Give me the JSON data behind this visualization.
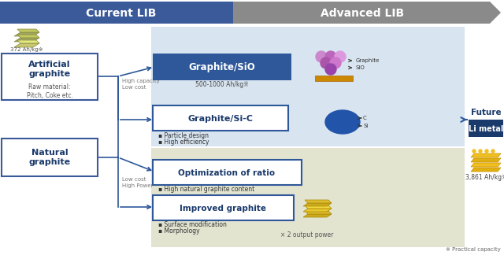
{
  "bg_color": "#ffffff",
  "header_blue": "#3a5a9a",
  "header_gray": "#8a8a8a",
  "box_blue_light": "#d8e4f0",
  "box_olive_light": "#e2e4d0",
  "label_dark_blue": "#1a3a6b",
  "box_fill_blue": "#2e5899",
  "line_color": "#2e5899",
  "current_lib": "Current LIB",
  "advanced_lib": "Advanced LIB",
  "art_graphite": "Artificial\ngraphite",
  "art_sub": "Raw material:\nPitch, Coke etc.",
  "art_cap": "372 Ah/kg",
  "nat_graphite": "Natural\ngraphite",
  "high_cap": "High capacity\nLow cost",
  "low_cost": "Low cost\nHigh Power",
  "sio_label": "Graphite/SiO",
  "sio_cap": "500-1000 Ah/kg",
  "sic_label": "Graphite/Si-C",
  "sic_b1": "Particle design",
  "sic_b2": "High efficiency",
  "opt_label": "Optimization of ratio",
  "opt_b1": "High natural graphite content",
  "imp_label": "Improved graphite",
  "imp_b1": "Surface modification",
  "imp_b2": "Morphology",
  "x2_label": "× 2 output power",
  "graphite_lbl": "Graphite",
  "sio_side": "SiO",
  "c_lbl": "C",
  "si_lbl": "Si",
  "future_lbl": "Future",
  "li_metal": "Li metal",
  "li_cap": "3,861 Ah/kg",
  "footnote": "※ Practical capacity"
}
